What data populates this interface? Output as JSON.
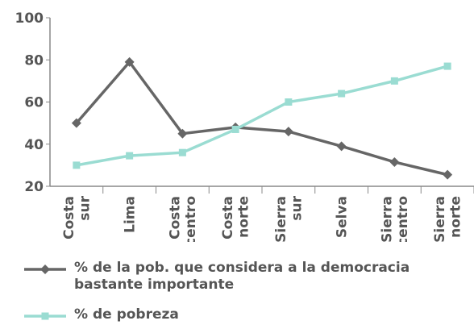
{
  "chart_data": {
    "type": "line",
    "categories": [
      "Costa sur",
      "Lima",
      "Costa centro",
      "Costa norte",
      "Sierra sur",
      "Selva",
      "Sierra centro",
      "Sierra norte"
    ],
    "series": [
      {
        "name": "% de la pob. que considera a la democracia bastante importante",
        "color": "#666666",
        "marker": "diamond",
        "values": [
          50,
          79,
          45,
          48,
          46,
          39,
          31.5,
          25.5
        ]
      },
      {
        "name": "% de pobreza",
        "color": "#9adcd2",
        "marker": "square",
        "values": [
          30,
          34.5,
          36,
          47,
          60,
          64,
          70,
          77
        ]
      }
    ],
    "ylim": [
      20,
      100
    ],
    "yticks": [
      20,
      40,
      60,
      80,
      100
    ],
    "grid": false
  }
}
